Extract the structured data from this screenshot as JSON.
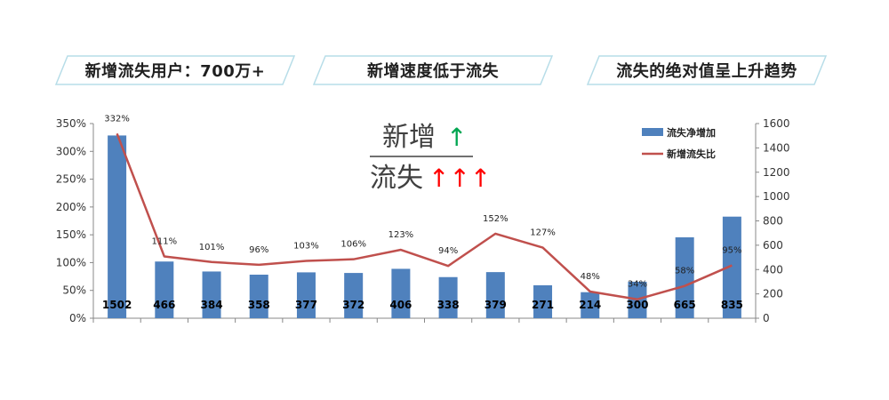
{
  "banners": [
    {
      "text": "新增流失用户：700万+"
    },
    {
      "text": "新增速度低于流失"
    },
    {
      "text": "流失的绝对值呈上升趋势"
    }
  ],
  "overlay": {
    "top_word": "新增",
    "top_arrow": "↑",
    "bottom_word": "流失",
    "bottom_arrows": "↑↑↑"
  },
  "colors": {
    "bar": "#4f81bd",
    "line": "#c0504d",
    "banner_border": "#b7dde8"
  },
  "chart_data": {
    "type": "bar",
    "categories": [
      "",
      "",
      "",
      "",
      "",
      "",
      "",
      "",
      "",
      "",
      "",
      "",
      "",
      ""
    ],
    "series": [
      {
        "name": "流失净增加",
        "type": "bar",
        "axis": "right",
        "values": [
          1502,
          466,
          384,
          358,
          377,
          372,
          406,
          338,
          379,
          271,
          214,
          300,
          665,
          835
        ],
        "labels": [
          "1502",
          "466",
          "384",
          "358",
          "377",
          "372",
          "406",
          "338",
          "379",
          "271",
          "214",
          "300",
          "665",
          "835"
        ]
      },
      {
        "name": "新增流失比",
        "type": "line",
        "axis": "left",
        "values": [
          332,
          111,
          101,
          96,
          103,
          106,
          123,
          94,
          152,
          127,
          48,
          34,
          58,
          95
        ],
        "labels": [
          "332%",
          "111%",
          "101%",
          "96%",
          "103%",
          "106%",
          "123%",
          "94%",
          "152%",
          "127%",
          "48%",
          "34%",
          "58%",
          "95%"
        ]
      }
    ],
    "left_axis": {
      "min": 0,
      "max": 350,
      "ticks": [
        "0%",
        "50%",
        "100%",
        "150%",
        "200%",
        "250%",
        "300%",
        "350%"
      ]
    },
    "right_axis": {
      "min": 0,
      "max": 1600,
      "ticks": [
        "0",
        "200",
        "400",
        "600",
        "800",
        "1000",
        "1200",
        "1400",
        "1600"
      ]
    },
    "legend_position": "top-right",
    "grid": false
  }
}
